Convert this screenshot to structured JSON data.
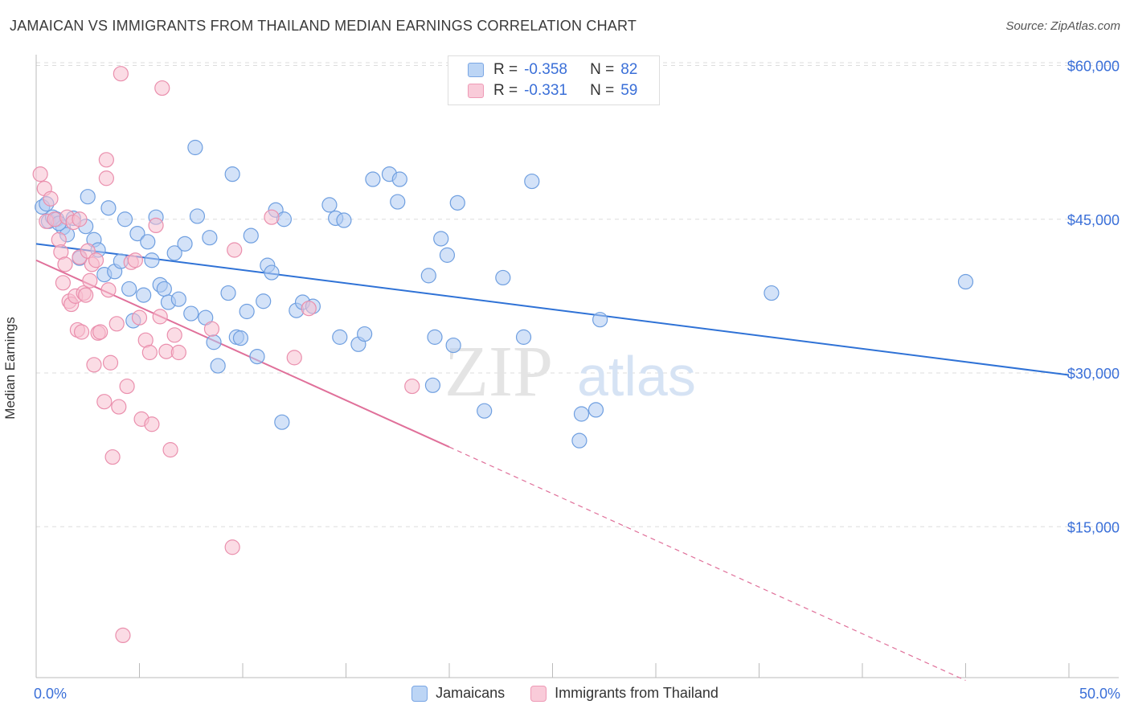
{
  "title": "JAMAICAN VS IMMIGRANTS FROM THAILAND MEDIAN EARNINGS CORRELATION CHART",
  "source": "Source: ZipAtlas.com",
  "watermark": {
    "zip": "ZIP",
    "atlas": "atlas"
  },
  "legend_top": {
    "rows": [
      {
        "r_label": "R =",
        "r_value": "-0.358",
        "n_label": "N =",
        "n_value": "82"
      },
      {
        "r_label": "R =",
        "r_value": "-0.331",
        "n_label": "N =",
        "n_value": "59"
      }
    ]
  },
  "legend_bottom": [
    "Jamaicans",
    "Immigrants from Thailand"
  ],
  "x_tick_labels": {
    "min": "0.0%",
    "max": "50.0%"
  },
  "chart_data": {
    "type": "scatter",
    "title": "JAMAICAN VS IMMIGRANTS FROM THAILAND MEDIAN EARNINGS CORRELATION CHART",
    "xlabel": "",
    "ylabel": "Median Earnings",
    "xlim": [
      0,
      50
    ],
    "ylim": [
      0,
      62000
    ],
    "y_ticks": [
      {
        "value": 15000,
        "label": "$15,000"
      },
      {
        "value": 30000,
        "label": "$30,000"
      },
      {
        "value": 45000,
        "label": "$45,000"
      },
      {
        "value": 60000,
        "label": "$60,000"
      }
    ],
    "grid": true,
    "legend_position": "top-center",
    "colors": {
      "Jamaicans": {
        "fill": "#aecbf2",
        "stroke": "#6f9fe0",
        "line": "#2f72d6"
      },
      "Immigrants from Thailand": {
        "fill": "#f7bfd0",
        "stroke": "#ea8fad",
        "line": "#e0709a"
      }
    },
    "series": [
      {
        "name": "Jamaicans",
        "r": -0.358,
        "n": 82,
        "trend": {
          "x0": 0,
          "y0": 42600,
          "x1": 50,
          "y1": 29800,
          "dashed_from": null
        },
        "points": [
          [
            0.3,
            46200
          ],
          [
            0.6,
            44800
          ],
          [
            0.8,
            45200
          ],
          [
            1.0,
            45000
          ],
          [
            1.3,
            44200
          ],
          [
            1.5,
            43500
          ],
          [
            1.8,
            45100
          ],
          [
            2.1,
            41200
          ],
          [
            2.4,
            44300
          ],
          [
            2.5,
            47200
          ],
          [
            2.8,
            43000
          ],
          [
            3.0,
            42000
          ],
          [
            3.3,
            39600
          ],
          [
            3.5,
            46100
          ],
          [
            3.8,
            39900
          ],
          [
            4.1,
            40900
          ],
          [
            4.3,
            45000
          ],
          [
            4.5,
            38200
          ],
          [
            4.7,
            35100
          ],
          [
            4.9,
            43600
          ],
          [
            5.2,
            37600
          ],
          [
            5.4,
            42800
          ],
          [
            5.6,
            41000
          ],
          [
            5.8,
            45200
          ],
          [
            6.0,
            38600
          ],
          [
            6.2,
            38200
          ],
          [
            6.4,
            36900
          ],
          [
            6.7,
            41700
          ],
          [
            6.9,
            37200
          ],
          [
            7.2,
            42600
          ],
          [
            7.5,
            35800
          ],
          [
            7.7,
            52000
          ],
          [
            7.8,
            45300
          ],
          [
            8.2,
            35400
          ],
          [
            8.4,
            43200
          ],
          [
            8.6,
            33000
          ],
          [
            8.8,
            30700
          ],
          [
            9.3,
            37800
          ],
          [
            9.5,
            49400
          ],
          [
            9.7,
            33500
          ],
          [
            9.9,
            33400
          ],
          [
            10.2,
            36000
          ],
          [
            10.4,
            43400
          ],
          [
            10.7,
            31600
          ],
          [
            11.0,
            37000
          ],
          [
            11.2,
            40500
          ],
          [
            11.4,
            39800
          ],
          [
            11.6,
            45900
          ],
          [
            11.9,
            25200
          ],
          [
            12.0,
            45000
          ],
          [
            12.6,
            36100
          ],
          [
            12.9,
            36900
          ],
          [
            13.4,
            36500
          ],
          [
            14.2,
            46400
          ],
          [
            14.5,
            45100
          ],
          [
            14.7,
            33500
          ],
          [
            14.9,
            44900
          ],
          [
            15.6,
            32800
          ],
          [
            15.9,
            33800
          ],
          [
            16.3,
            48900
          ],
          [
            17.1,
            49400
          ],
          [
            17.5,
            46700
          ],
          [
            17.6,
            48900
          ],
          [
            19.0,
            39500
          ],
          [
            19.2,
            28800
          ],
          [
            19.3,
            33500
          ],
          [
            19.6,
            43100
          ],
          [
            19.9,
            41500
          ],
          [
            20.2,
            32700
          ],
          [
            20.4,
            46600
          ],
          [
            21.7,
            26300
          ],
          [
            22.6,
            39300
          ],
          [
            23.6,
            33500
          ],
          [
            24.0,
            48700
          ],
          [
            26.3,
            23400
          ],
          [
            26.4,
            26000
          ],
          [
            27.1,
            26400
          ],
          [
            27.3,
            35200
          ],
          [
            35.6,
            37800
          ],
          [
            45.0,
            38900
          ],
          [
            0.5,
            46500
          ],
          [
            1.1,
            44600
          ]
        ]
      },
      {
        "name": "Immigrants from Thailand",
        "r": -0.331,
        "n": 59,
        "trend": {
          "x0": 0,
          "y0": 41000,
          "x1": 45,
          "y1": 0,
          "dashed_from": 20
        },
        "points": [
          [
            0.2,
            49400
          ],
          [
            0.4,
            48000
          ],
          [
            0.5,
            44800
          ],
          [
            0.7,
            47000
          ],
          [
            0.9,
            45000
          ],
          [
            1.1,
            43000
          ],
          [
            1.2,
            41800
          ],
          [
            1.3,
            38800
          ],
          [
            1.4,
            40600
          ],
          [
            1.5,
            45200
          ],
          [
            1.6,
            37000
          ],
          [
            1.7,
            36700
          ],
          [
            1.8,
            44700
          ],
          [
            1.9,
            37500
          ],
          [
            2.0,
            34200
          ],
          [
            2.1,
            41300
          ],
          [
            2.2,
            34000
          ],
          [
            2.3,
            37800
          ],
          [
            2.4,
            37600
          ],
          [
            2.5,
            41900
          ],
          [
            2.6,
            39000
          ],
          [
            2.7,
            40600
          ],
          [
            2.8,
            30800
          ],
          [
            2.9,
            41000
          ],
          [
            3.0,
            33900
          ],
          [
            3.1,
            34000
          ],
          [
            3.3,
            27200
          ],
          [
            3.4,
            49000
          ],
          [
            3.5,
            38100
          ],
          [
            3.6,
            31000
          ],
          [
            3.7,
            21800
          ],
          [
            3.9,
            34800
          ],
          [
            4.0,
            26700
          ],
          [
            4.1,
            59200
          ],
          [
            4.2,
            4400
          ],
          [
            4.4,
            28700
          ],
          [
            4.6,
            40800
          ],
          [
            4.8,
            41000
          ],
          [
            5.0,
            35400
          ],
          [
            5.1,
            25500
          ],
          [
            5.3,
            33200
          ],
          [
            5.5,
            32000
          ],
          [
            5.6,
            25000
          ],
          [
            5.8,
            44400
          ],
          [
            6.0,
            35500
          ],
          [
            6.1,
            57800
          ],
          [
            6.3,
            32100
          ],
          [
            6.5,
            22500
          ],
          [
            6.7,
            33700
          ],
          [
            6.9,
            32000
          ],
          [
            8.5,
            34300
          ],
          [
            9.6,
            42000
          ],
          [
            11.4,
            45200
          ],
          [
            12.5,
            31500
          ],
          [
            13.2,
            36300
          ],
          [
            18.2,
            28700
          ],
          [
            9.5,
            13000
          ],
          [
            3.4,
            50800
          ],
          [
            2.1,
            45000
          ]
        ]
      }
    ]
  }
}
